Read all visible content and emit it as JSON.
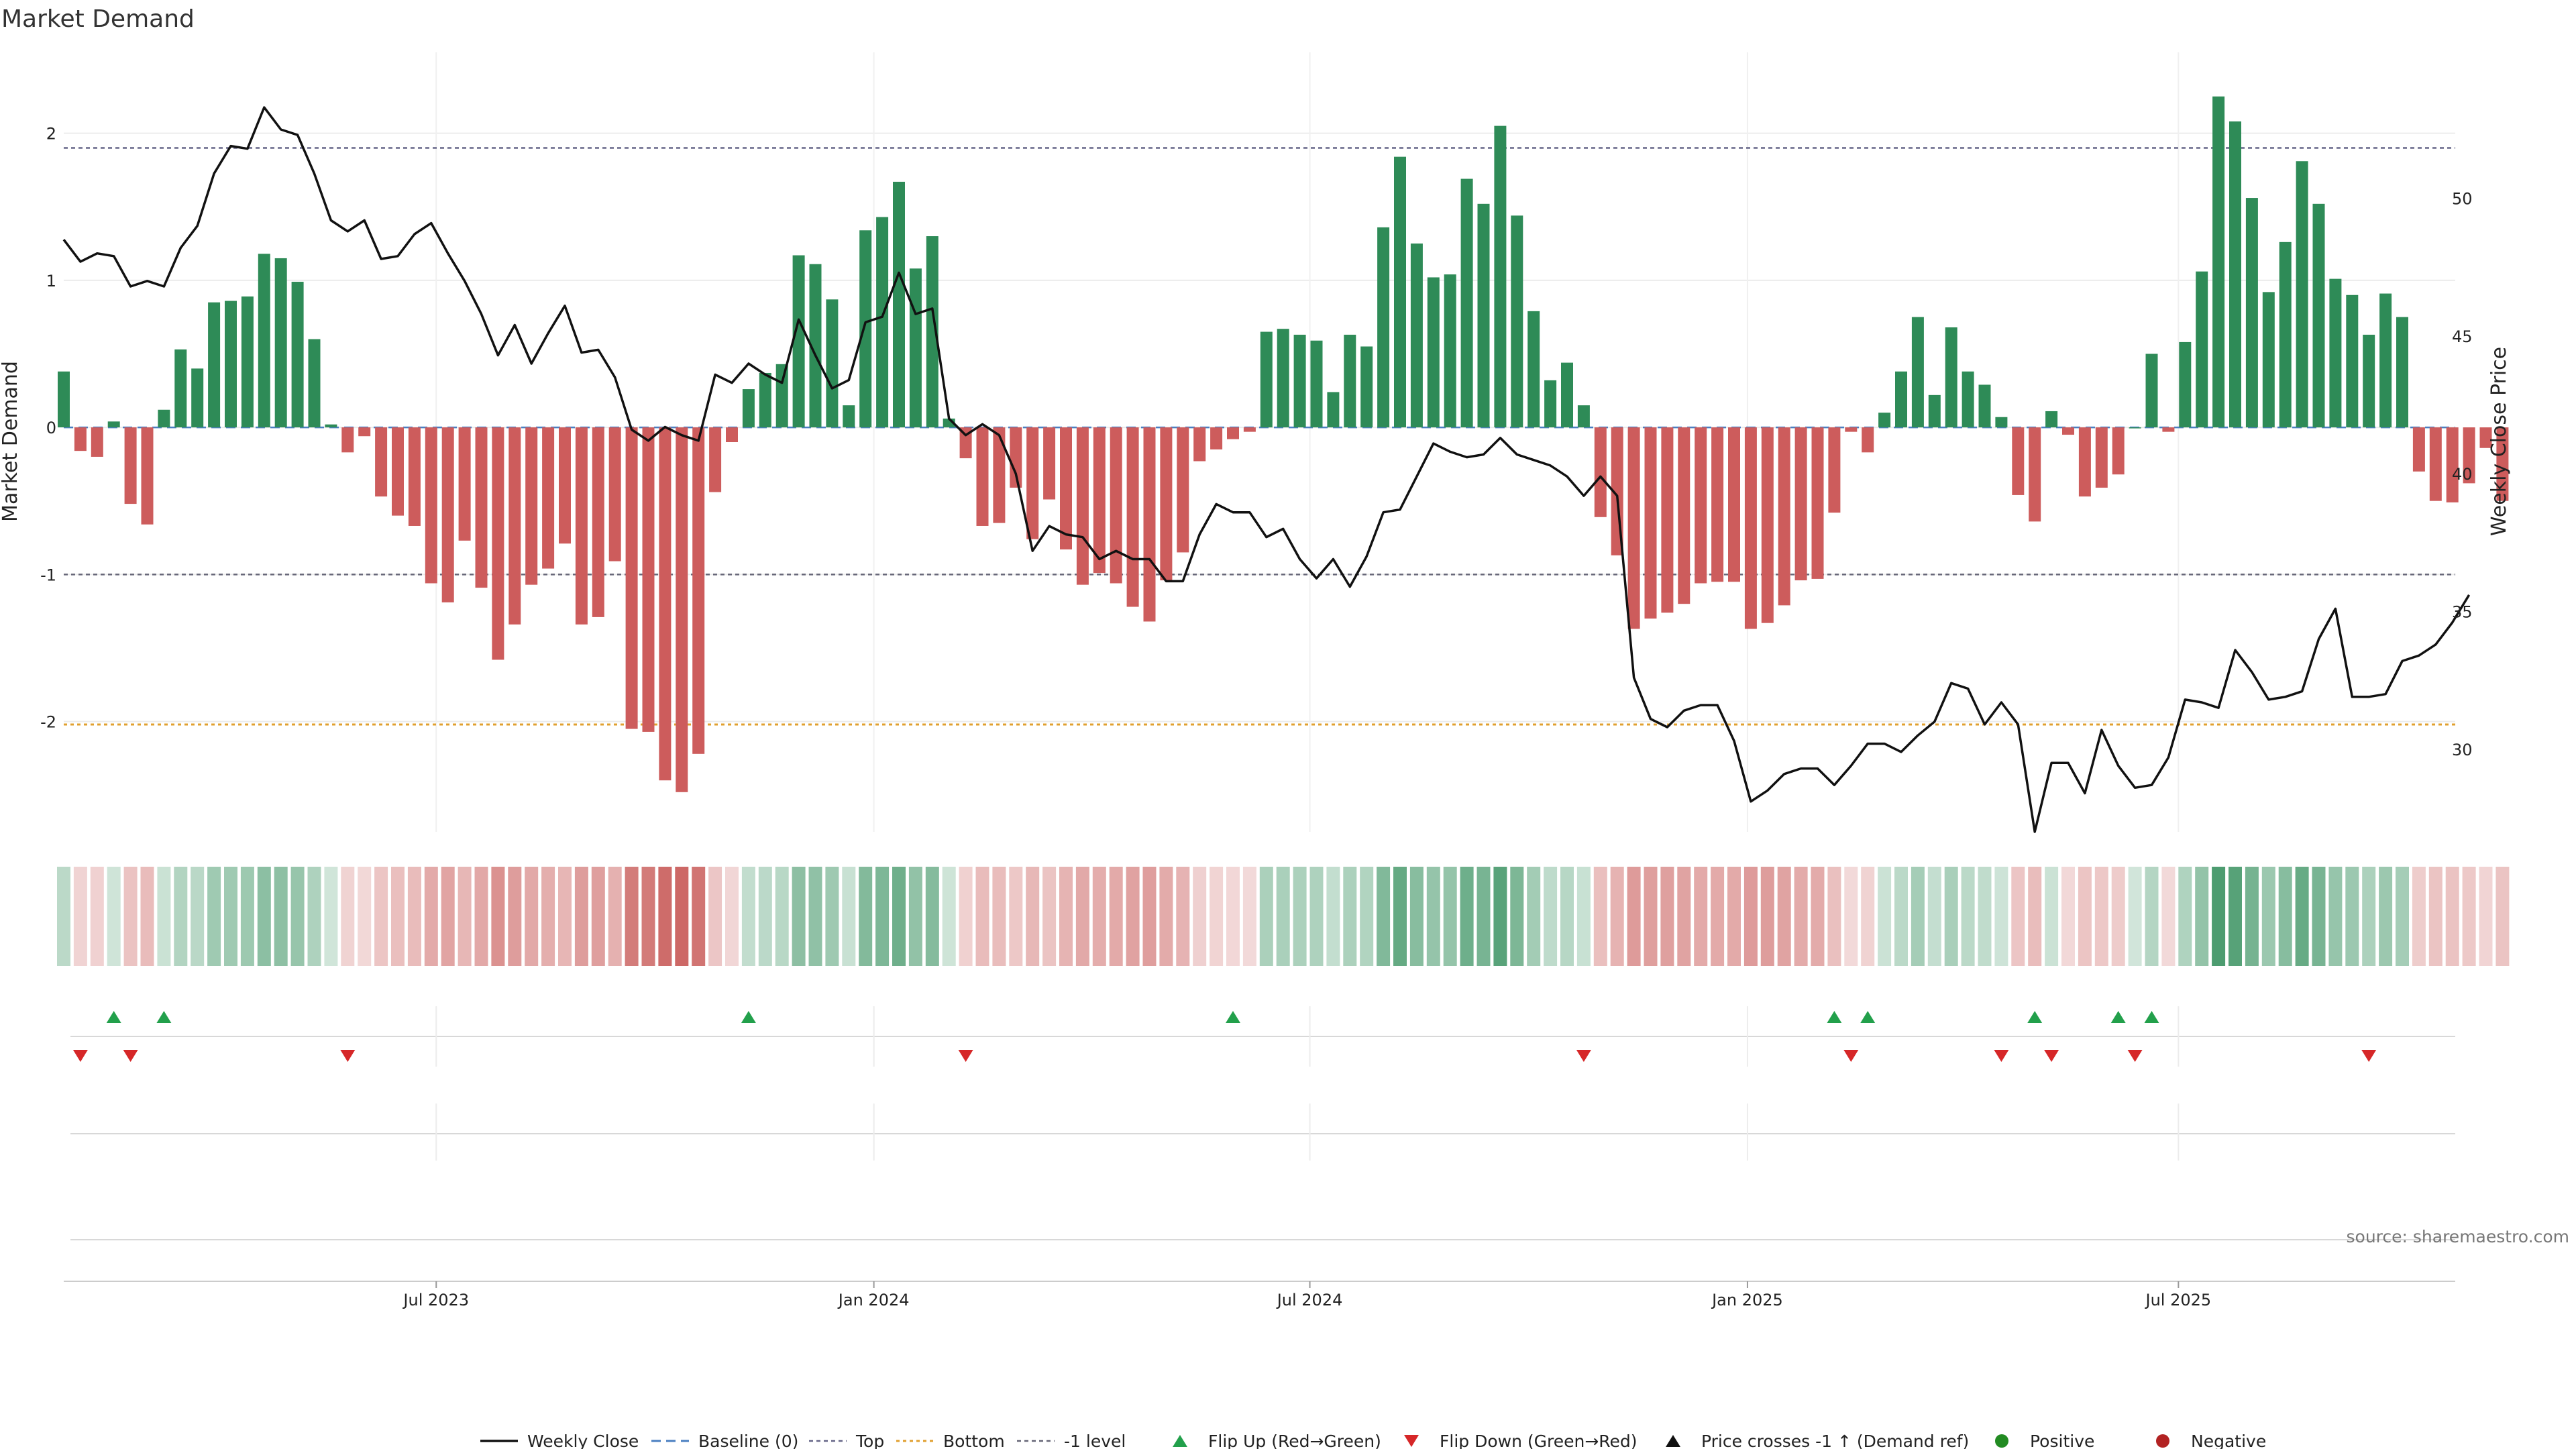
{
  "chart_data": {
    "type": "bar",
    "title": "Market Demand",
    "ylabel": "Market Demand",
    "y2label": "Weekly Close Price",
    "ylim": [
      -2.75,
      2.55
    ],
    "y2lim": [
      27,
      55.3
    ],
    "yticks": [
      2,
      1,
      0,
      -1,
      -2
    ],
    "y2ticks": [
      50,
      45,
      40,
      35,
      30
    ],
    "reference_levels": {
      "top": 1.9,
      "bottom": -2.02,
      "neg_one": -1,
      "baseline": 0
    },
    "x_tick_labels": [
      "Jul 2023",
      "Jan 2024",
      "Jul 2024",
      "Jan 2025",
      "Jul 2025"
    ],
    "x_tick_weeks": [
      22.3,
      48.5,
      74.6,
      100.8,
      126.6
    ],
    "demand": [
      0.38,
      -0.16,
      -0.2,
      0.04,
      -0.52,
      -0.66,
      0.12,
      0.53,
      0.4,
      0.85,
      0.86,
      0.89,
      1.18,
      1.15,
      0.99,
      0.6,
      0.02,
      -0.17,
      -0.06,
      -0.47,
      -0.6,
      -0.67,
      -1.06,
      -1.19,
      -0.77,
      -1.09,
      -1.58,
      -1.34,
      -1.07,
      -0.96,
      -0.79,
      -1.34,
      -1.29,
      -0.91,
      -2.05,
      -2.07,
      -2.4,
      -2.48,
      -2.22,
      -0.44,
      -0.1,
      0.26,
      0.37,
      0.43,
      1.17,
      1.11,
      0.87,
      0.15,
      1.34,
      1.43,
      1.67,
      1.08,
      1.3,
      0.06,
      -0.21,
      -0.67,
      -0.65,
      -0.41,
      -0.76,
      -0.49,
      -0.83,
      -1.07,
      -0.99,
      -1.06,
      -1.22,
      -1.32,
      -1.04,
      -0.85,
      -0.23,
      -0.15,
      -0.08,
      -0.03,
      0.65,
      0.67,
      0.63,
      0.59,
      0.24,
      0.63,
      0.55,
      1.36,
      1.84,
      1.25,
      1.02,
      1.04,
      1.69,
      1.52,
      2.05,
      1.44,
      0.79,
      0.32,
      0.44,
      0.15,
      -0.61,
      -0.87,
      -1.37,
      -1.3,
      -1.26,
      -1.2,
      -1.06,
      -1.05,
      -1.05,
      -1.37,
      -1.33,
      -1.21,
      -1.04,
      -1.03,
      -0.58,
      -0.03,
      -0.17,
      0.1,
      0.38,
      0.75,
      0.22,
      0.68,
      0.38,
      0.29,
      0.07,
      -0.46,
      -0.64,
      0.11,
      -0.05,
      -0.47,
      -0.41,
      -0.32,
      0.0,
      0.5,
      -0.03,
      0.58,
      1.06,
      2.25,
      2.08,
      1.56,
      0.92,
      1.26,
      1.81,
      1.52,
      1.01,
      0.9,
      0.63,
      0.91,
      0.75,
      -0.3,
      -0.5,
      -0.51,
      -0.38,
      -0.14,
      -0.5
    ],
    "close": [
      48.5,
      47.7,
      48.0,
      47.9,
      46.8,
      47.0,
      46.8,
      48.2,
      49.0,
      50.9,
      51.9,
      51.8,
      53.3,
      52.5,
      52.3,
      50.9,
      49.2,
      48.8,
      49.2,
      47.8,
      47.9,
      48.7,
      49.1,
      48.0,
      47.0,
      45.8,
      44.3,
      45.4,
      44.0,
      45.1,
      46.1,
      44.4,
      44.5,
      43.5,
      41.6,
      41.2,
      41.7,
      41.4,
      41.2,
      43.6,
      43.3,
      44.0,
      43.6,
      43.3,
      45.6,
      44.3,
      43.1,
      43.4,
      45.5,
      45.7,
      47.3,
      45.8,
      46.0,
      42.0,
      41.4,
      41.8,
      41.4,
      40.0,
      37.2,
      38.1,
      37.8,
      37.7,
      36.9,
      37.2,
      36.9,
      36.9,
      36.1,
      36.1,
      37.8,
      38.9,
      38.6,
      38.6,
      37.7,
      38.0,
      36.9,
      36.2,
      36.9,
      35.9,
      37.0,
      38.6,
      38.7,
      39.9,
      41.1,
      40.8,
      40.6,
      40.7,
      41.3,
      40.7,
      40.5,
      40.3,
      39.9,
      39.2,
      39.9,
      39.2,
      32.6,
      31.1,
      30.8,
      31.4,
      31.6,
      31.6,
      30.3,
      28.1,
      28.5,
      29.1,
      29.3,
      29.3,
      28.7,
      29.4,
      30.2,
      30.2,
      29.9,
      30.5,
      31.0,
      32.4,
      32.2,
      30.9,
      31.7,
      30.9,
      27.0,
      29.5,
      29.5,
      28.4,
      30.7,
      29.4,
      28.6,
      28.7,
      29.7,
      31.8,
      31.7,
      31.5,
      33.6,
      32.8,
      31.8,
      31.9,
      32.1,
      34.0,
      35.1,
      31.9,
      31.9,
      32.0,
      33.2,
      33.4,
      33.8,
      34.6,
      35.6
    ]
  },
  "heatstrip": {
    "positive_color": "#2e8b57",
    "negative_color": "#c85a58"
  },
  "events": {
    "flip_up_weeks": [
      3,
      6,
      41,
      70,
      106,
      108,
      118,
      123,
      125
    ],
    "flip_down_weeks": [
      1,
      4,
      17,
      54,
      91,
      107,
      116,
      119,
      124,
      138
    ]
  },
  "legend": [
    {
      "key": "close",
      "label": "Weekly Close"
    },
    {
      "key": "baseline",
      "label": "Baseline (0)"
    },
    {
      "key": "top",
      "label": "Top"
    },
    {
      "key": "bottom",
      "label": "Bottom"
    },
    {
      "key": "neg_one",
      "label": "-1 level"
    },
    {
      "key": "flip_up",
      "label": "Flip Up (Red→Green)"
    },
    {
      "key": "flip_down",
      "label": "Flip Down (Green→Red)"
    },
    {
      "key": "cross",
      "label": "Price crosses -1 ↑ (Demand ref)"
    },
    {
      "key": "positive",
      "label": "Positive"
    },
    {
      "key": "negative",
      "label": "Negative"
    }
  ],
  "source": "source: sharemaestro.com",
  "colors": {
    "positive": "#2e8b57",
    "negative": "#cd5c5c",
    "close": "#111111",
    "baseline": "#4a7fc1",
    "top": "#666688",
    "bottom": "#e0a030",
    "neg_one": "#666677",
    "flip_up": "#22a04b",
    "flip_down": "#d62728",
    "positive_dot": "#228b22",
    "negative_dot": "#b22222"
  }
}
